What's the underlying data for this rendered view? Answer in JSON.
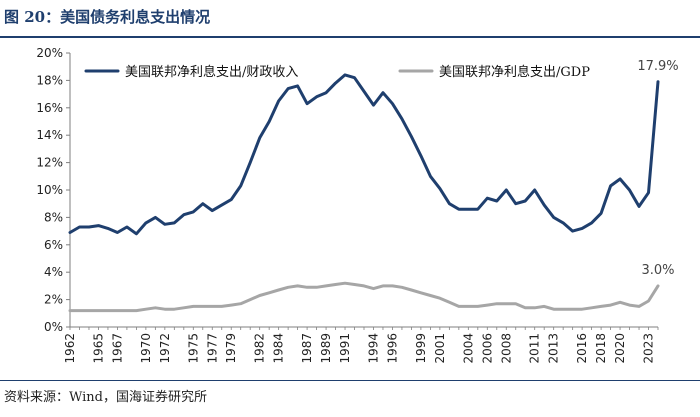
{
  "page": {
    "title": "图 20：美国债务利息支出情况",
    "source": "资料来源：Wind，国海证券研究所"
  },
  "colors": {
    "primary": "#1f3f6e",
    "secondary": "#a6a6a6",
    "axis": "#7f7f7f"
  },
  "chart_data": {
    "type": "line",
    "title": "",
    "xlabel": "",
    "ylabel": "",
    "xlim": [
      1962,
      2024
    ],
    "ylim": [
      0,
      20
    ],
    "y_ticks": [
      "0%",
      "2%",
      "4%",
      "6%",
      "8%",
      "10%",
      "12%",
      "14%",
      "16%",
      "18%",
      "20%"
    ],
    "x_ticks": [
      1962,
      1965,
      1967,
      1970,
      1972,
      1975,
      1977,
      1979,
      1982,
      1984,
      1987,
      1989,
      1991,
      1994,
      1996,
      1999,
      2001,
      2004,
      2006,
      2008,
      2011,
      2013,
      2016,
      2018,
      2020,
      2023
    ],
    "grid": false,
    "legend": "top",
    "x": [
      1962,
      1963,
      1964,
      1965,
      1966,
      1967,
      1968,
      1969,
      1970,
      1971,
      1972,
      1973,
      1974,
      1975,
      1976,
      1977,
      1978,
      1979,
      1980,
      1981,
      1982,
      1983,
      1984,
      1985,
      1986,
      1987,
      1988,
      1989,
      1990,
      1991,
      1992,
      1993,
      1994,
      1995,
      1996,
      1997,
      1998,
      1999,
      2000,
      2001,
      2002,
      2003,
      2004,
      2005,
      2006,
      2007,
      2008,
      2009,
      2010,
      2011,
      2012,
      2013,
      2014,
      2015,
      2016,
      2017,
      2018,
      2019,
      2020,
      2021,
      2022,
      2023,
      2024
    ],
    "series": [
      {
        "name": "美国联邦净利息支出/财政收入",
        "color": "#1f3f6e",
        "values": [
          6.9,
          7.3,
          7.3,
          7.4,
          7.2,
          6.9,
          7.3,
          6.8,
          7.6,
          8.0,
          7.5,
          7.6,
          8.2,
          8.4,
          9.0,
          8.5,
          8.9,
          9.3,
          10.3,
          12.0,
          13.8,
          15.0,
          16.5,
          17.4,
          17.6,
          16.3,
          16.8,
          17.1,
          17.8,
          18.4,
          18.2,
          17.2,
          16.2,
          17.1,
          16.3,
          15.2,
          13.9,
          12.5,
          11.0,
          10.1,
          9.0,
          8.6,
          8.6,
          8.6,
          9.4,
          9.2,
          10.0,
          9.0,
          9.2,
          10.0,
          8.9,
          8.0,
          7.6,
          7.0,
          7.2,
          7.6,
          8.3,
          10.3,
          10.8,
          10.0,
          8.8,
          9.8,
          17.9
        ]
      },
      {
        "name": "美国联邦净利息支出/GDP",
        "color": "#a6a6a6",
        "values": [
          1.2,
          1.2,
          1.2,
          1.2,
          1.2,
          1.2,
          1.2,
          1.2,
          1.3,
          1.4,
          1.3,
          1.3,
          1.4,
          1.5,
          1.5,
          1.5,
          1.5,
          1.6,
          1.7,
          2.0,
          2.3,
          2.5,
          2.7,
          2.9,
          3.0,
          2.9,
          2.9,
          3.0,
          3.1,
          3.2,
          3.1,
          3.0,
          2.8,
          3.0,
          3.0,
          2.9,
          2.7,
          2.5,
          2.3,
          2.1,
          1.8,
          1.5,
          1.5,
          1.5,
          1.6,
          1.7,
          1.7,
          1.7,
          1.4,
          1.4,
          1.5,
          1.3,
          1.3,
          1.3,
          1.3,
          1.4,
          1.5,
          1.6,
          1.8,
          1.6,
          1.5,
          1.9,
          3.0
        ]
      }
    ],
    "annotations": [
      {
        "series": 0,
        "x": 2024,
        "text": "17.9%"
      },
      {
        "series": 1,
        "x": 2024,
        "text": "3.0%"
      }
    ]
  }
}
